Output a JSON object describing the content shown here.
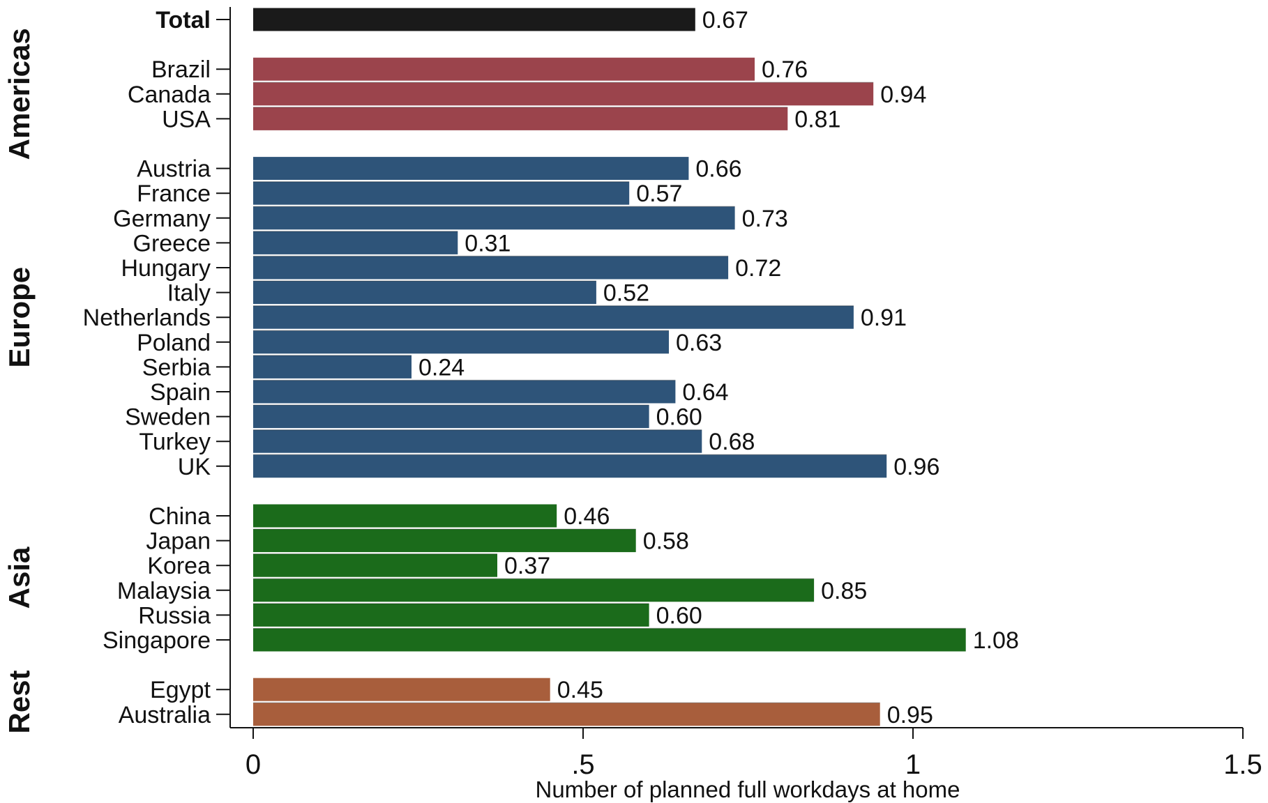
{
  "chart_data": {
    "type": "bar",
    "orientation": "horizontal",
    "xlabel": "Number of planned full workdays at home",
    "xlim": [
      0,
      1.5
    ],
    "xticks": [
      0,
      0.5,
      1,
      1.5
    ],
    "xtick_labels": [
      "0",
      ".5",
      "1",
      "1.5"
    ],
    "grid": false,
    "colors": {
      "Total": "#1a1a1a",
      "Americas": "#9b444c",
      "Europe": "#2e5479",
      "Asia": "#1b6b1b",
      "Rest": "#a85e3c"
    },
    "groups": [
      {
        "name": "",
        "key": "Total",
        "items": [
          {
            "label": "Total",
            "value": 0.67,
            "value_label": "0.67"
          }
        ]
      },
      {
        "name": "Americas",
        "key": "Americas",
        "items": [
          {
            "label": "Brazil",
            "value": 0.76,
            "value_label": "0.76"
          },
          {
            "label": "Canada",
            "value": 0.94,
            "value_label": "0.94"
          },
          {
            "label": "USA",
            "value": 0.81,
            "value_label": "0.81"
          }
        ]
      },
      {
        "name": "Europe",
        "key": "Europe",
        "items": [
          {
            "label": "Austria",
            "value": 0.66,
            "value_label": "0.66"
          },
          {
            "label": "France",
            "value": 0.57,
            "value_label": "0.57"
          },
          {
            "label": "Germany",
            "value": 0.73,
            "value_label": "0.73"
          },
          {
            "label": "Greece",
            "value": 0.31,
            "value_label": "0.31"
          },
          {
            "label": "Hungary",
            "value": 0.72,
            "value_label": "0.72"
          },
          {
            "label": "Italy",
            "value": 0.52,
            "value_label": "0.52"
          },
          {
            "label": "Netherlands",
            "value": 0.91,
            "value_label": "0.91"
          },
          {
            "label": "Poland",
            "value": 0.63,
            "value_label": "0.63"
          },
          {
            "label": "Serbia",
            "value": 0.24,
            "value_label": "0.24"
          },
          {
            "label": "Spain",
            "value": 0.64,
            "value_label": "0.64"
          },
          {
            "label": "Sweden",
            "value": 0.6,
            "value_label": "0.60"
          },
          {
            "label": "Turkey",
            "value": 0.68,
            "value_label": "0.68"
          },
          {
            "label": "UK",
            "value": 0.96,
            "value_label": "0.96"
          }
        ]
      },
      {
        "name": "Asia",
        "key": "Asia",
        "items": [
          {
            "label": "China",
            "value": 0.46,
            "value_label": "0.46"
          },
          {
            "label": "Japan",
            "value": 0.58,
            "value_label": "0.58"
          },
          {
            "label": "Korea",
            "value": 0.37,
            "value_label": "0.37"
          },
          {
            "label": "Malaysia",
            "value": 0.85,
            "value_label": "0.85"
          },
          {
            "label": "Russia",
            "value": 0.6,
            "value_label": "0.60"
          },
          {
            "label": "Singapore",
            "value": 1.08,
            "value_label": "1.08"
          }
        ]
      },
      {
        "name": "Rest",
        "key": "Rest",
        "items": [
          {
            "label": "Egypt",
            "value": 0.45,
            "value_label": "0.45"
          },
          {
            "label": "Australia",
            "value": 0.95,
            "value_label": "0.95"
          }
        ]
      }
    ]
  }
}
